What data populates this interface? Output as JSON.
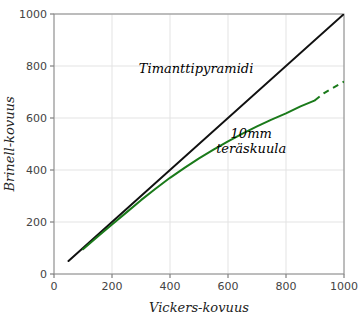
{
  "chart_data": {
    "type": "line",
    "xlabel": "Vickers-kovuus",
    "ylabel": "Brinell-kovuus",
    "xlim": [
      0,
      1000
    ],
    "ylim": [
      0,
      1000
    ],
    "xticks": [
      0,
      200,
      400,
      600,
      800,
      1000
    ],
    "yticks": [
      0,
      200,
      400,
      600,
      800,
      1000
    ],
    "grid": true,
    "series": [
      {
        "x": [
          50,
          1000
        ],
        "values": [
          50,
          1000
        ],
        "color": "#111111",
        "line_style": "solid"
      },
      {
        "x": [
          100,
          150,
          200,
          250,
          300,
          350,
          400,
          450,
          500,
          550,
          600,
          650,
          700,
          750,
          800,
          850,
          900
        ],
        "values": [
          95,
          143,
          190,
          237,
          284,
          328,
          370,
          408,
          445,
          478,
          510,
          540,
          568,
          594,
          618,
          645,
          668
        ],
        "color": "#1a7a1a",
        "line_style": "solid"
      },
      {
        "x": [
          900,
          930,
          960,
          1000
        ],
        "values": [
          668,
          695,
          715,
          740
        ],
        "color": "#1a7a1a",
        "line_style": "dashed"
      }
    ],
    "annotations": [
      {
        "text": "Timanttipyramidi",
        "x": 490,
        "y": 790
      },
      {
        "text": "10mm\nteräskuula",
        "x": 680,
        "y": 510
      }
    ]
  }
}
